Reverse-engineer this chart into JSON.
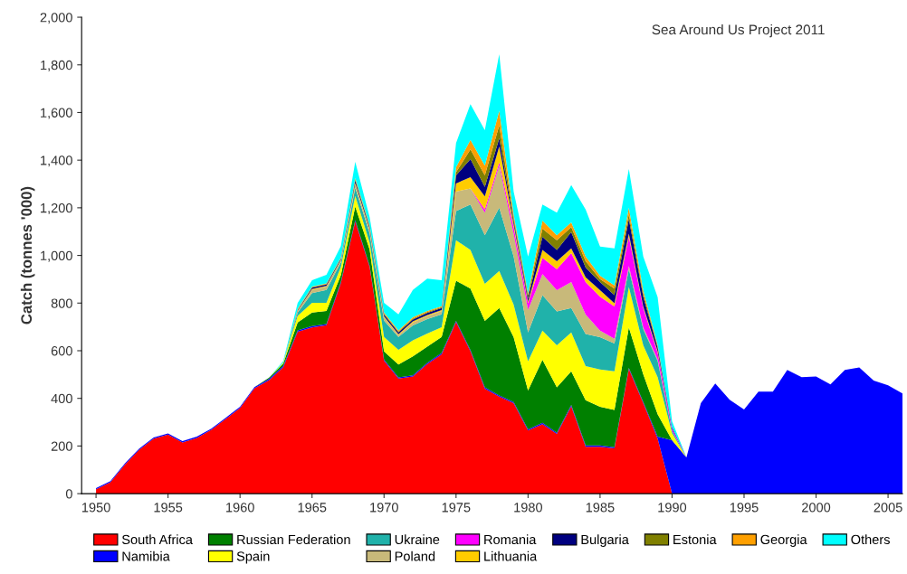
{
  "chart_data": {
    "type": "area",
    "stacked": true,
    "ylabel": "Catch (tonnes '000)",
    "annotations": [
      "Sea Around Us Project 2011"
    ],
    "x": [
      1950,
      1951,
      1952,
      1953,
      1954,
      1955,
      1956,
      1957,
      1958,
      1959,
      1960,
      1961,
      1962,
      1963,
      1964,
      1965,
      1966,
      1967,
      1968,
      1969,
      1970,
      1971,
      1972,
      1973,
      1974,
      1975,
      1976,
      1977,
      1978,
      1979,
      1980,
      1981,
      1982,
      1983,
      1984,
      1985,
      1986,
      1987,
      1988,
      1989,
      1990,
      1991,
      1992,
      1993,
      1994,
      1995,
      1996,
      1997,
      1998,
      1999,
      2000,
      2001,
      2002,
      2003,
      2004,
      2005,
      2006
    ],
    "xlim": [
      1949,
      2006
    ],
    "xticks": [
      1950,
      1955,
      1960,
      1965,
      1970,
      1975,
      1980,
      1985,
      1990,
      1995,
      2000,
      2005
    ],
    "ylim": [
      0,
      2000
    ],
    "yticks": [
      0,
      200,
      400,
      600,
      800,
      {
        "value": 1000,
        "label": "1,000"
      },
      {
        "value": 1200,
        "label": "1,200"
      },
      {
        "value": 1400,
        "label": "1,400"
      },
      {
        "value": 1600,
        "label": "1,600"
      },
      {
        "value": 1800,
        "label": "1,800"
      },
      {
        "value": 2000,
        "label": "2,000"
      }
    ],
    "grid": false,
    "legend": "bottom",
    "series": [
      {
        "name": "South Africa",
        "color": "#ff0000",
        "values": [
          18,
          48,
          122,
          184,
          231,
          248,
          215,
          234,
          268,
          313,
          360,
          442,
          476,
          531,
          680,
          698,
          707,
          884,
          1143,
          952,
          558,
          483,
          492,
          544,
          585,
          720,
          598,
          441,
          407,
          380,
          265,
          292,
          251,
          367,
          197,
          197,
          190,
          523,
          380,
          231,
          0,
          0,
          0,
          0,
          0,
          0,
          0,
          0,
          0,
          0,
          0,
          0,
          0,
          0,
          0,
          0,
          0
        ]
      },
      {
        "name": "Namibia",
        "color": "#0000ff",
        "values": [
          5,
          5,
          5,
          5,
          5,
          5,
          5,
          5,
          5,
          5,
          5,
          5,
          5,
          5,
          5,
          5,
          5,
          5,
          5,
          5,
          5,
          5,
          5,
          5,
          5,
          5,
          5,
          5,
          5,
          5,
          5,
          5,
          5,
          5,
          5,
          5,
          5,
          5,
          5,
          8,
          224,
          152,
          380,
          462,
          394,
          353,
          428,
          428,
          519,
          489,
          492,
          459,
          519,
          530,
          475,
          455,
          421
        ]
      },
      {
        "name": "Russian Federation",
        "color": "#008000",
        "values": [
          0,
          0,
          0,
          0,
          0,
          0,
          0,
          0,
          0,
          0,
          0,
          0,
          5,
          10,
          34,
          57,
          55,
          28,
          57,
          68,
          34,
          54,
          79,
          68,
          68,
          169,
          258,
          279,
          367,
          272,
          163,
          265,
          190,
          142,
          190,
          163,
          156,
          170,
          116,
          94,
          0,
          0,
          0,
          0,
          0,
          0,
          0,
          0,
          0,
          0,
          0,
          0,
          0,
          0,
          0,
          0,
          0
        ]
      },
      {
        "name": "Spain",
        "color": "#ffff00",
        "values": [
          0,
          0,
          0,
          0,
          0,
          0,
          0,
          0,
          0,
          0,
          0,
          0,
          0,
          5,
          27,
          41,
          34,
          34,
          45,
          28,
          61,
          62,
          68,
          55,
          41,
          170,
          162,
          156,
          156,
          136,
          122,
          122,
          177,
          163,
          143,
          156,
          163,
          169,
          122,
          156,
          30,
          0,
          0,
          0,
          0,
          0,
          0,
          0,
          0,
          0,
          0,
          0,
          0,
          0,
          0,
          0,
          0
        ]
      },
      {
        "name": "Ukraine",
        "color": "#20b2aa",
        "values": [
          0,
          0,
          0,
          0,
          0,
          0,
          0,
          0,
          0,
          0,
          0,
          0,
          0,
          0,
          14,
          41,
          54,
          20,
          34,
          40,
          68,
          54,
          62,
          61,
          54,
          122,
          191,
          204,
          265,
          203,
          122,
          149,
          142,
          102,
          135,
          136,
          116,
          75,
          68,
          68,
          10,
          0,
          0,
          0,
          0,
          0,
          0,
          0,
          0,
          0,
          0,
          0,
          0,
          0,
          0,
          0,
          0
        ]
      },
      {
        "name": "Poland",
        "color": "#c8b97a",
        "values": [
          0,
          0,
          0,
          0,
          0,
          0,
          0,
          0,
          0,
          0,
          0,
          0,
          0,
          0,
          5,
          13,
          14,
          7,
          14,
          14,
          14,
          7,
          13,
          13,
          14,
          82,
          67,
          95,
          177,
          95,
          95,
          89,
          89,
          109,
          82,
          27,
          20,
          14,
          7,
          7,
          0,
          0,
          0,
          0,
          0,
          0,
          0,
          0,
          0,
          0,
          0,
          0,
          0,
          0,
          0,
          0,
          0
        ]
      },
      {
        "name": "Romania",
        "color": "#ff00ff",
        "values": [
          0,
          0,
          0,
          0,
          0,
          0,
          0,
          0,
          0,
          0,
          0,
          0,
          0,
          0,
          0,
          0,
          0,
          0,
          0,
          0,
          0,
          0,
          0,
          0,
          0,
          0,
          0,
          13,
          13,
          28,
          27,
          68,
          88,
          122,
          136,
          143,
          136,
          122,
          81,
          27,
          10,
          0,
          0,
          0,
          0,
          0,
          0,
          0,
          0,
          0,
          0,
          0,
          0,
          0,
          0,
          0,
          0
        ]
      },
      {
        "name": "Lithuania",
        "color": "#ffcc00",
        "values": [
          0,
          0,
          0,
          0,
          0,
          0,
          0,
          0,
          0,
          0,
          0,
          0,
          0,
          0,
          2,
          4,
          3,
          3,
          6,
          4,
          4,
          4,
          4,
          4,
          4,
          34,
          48,
          55,
          68,
          13,
          7,
          33,
          34,
          20,
          20,
          27,
          13,
          13,
          7,
          7,
          0,
          0,
          0,
          0,
          0,
          0,
          0,
          0,
          0,
          0,
          0,
          0,
          0,
          0,
          0,
          0,
          0
        ]
      },
      {
        "name": "Bulgaria",
        "color": "#000080",
        "values": [
          0,
          0,
          0,
          0,
          0,
          0,
          0,
          0,
          0,
          0,
          0,
          0,
          0,
          0,
          3,
          6,
          6,
          5,
          10,
          8,
          8,
          8,
          8,
          8,
          8,
          34,
          75,
          40,
          34,
          14,
          14,
          55,
          47,
          68,
          41,
          34,
          34,
          62,
          41,
          14,
          5,
          0,
          0,
          0,
          0,
          0,
          0,
          0,
          0,
          0,
          0,
          0,
          0,
          0,
          0,
          0,
          0
        ]
      },
      {
        "name": "Estonia",
        "color": "#808000",
        "values": [
          0,
          0,
          0,
          0,
          0,
          0,
          0,
          0,
          0,
          0,
          0,
          0,
          0,
          0,
          2,
          2,
          2,
          2,
          5,
          4,
          4,
          4,
          4,
          4,
          4,
          13,
          41,
          48,
          54,
          13,
          13,
          34,
          41,
          21,
          27,
          13,
          28,
          20,
          13,
          7,
          0,
          0,
          0,
          0,
          0,
          0,
          0,
          0,
          0,
          0,
          0,
          0,
          0,
          0,
          0,
          0,
          0
        ]
      },
      {
        "name": "Georgia",
        "color": "#ffa000",
        "values": [
          0,
          0,
          0,
          0,
          0,
          0,
          0,
          0,
          0,
          0,
          0,
          0,
          0,
          0,
          3,
          2,
          3,
          3,
          6,
          4,
          4,
          4,
          5,
          5,
          4,
          21,
          40,
          41,
          61,
          14,
          7,
          34,
          21,
          20,
          20,
          14,
          13,
          27,
          14,
          6,
          0,
          0,
          0,
          0,
          0,
          0,
          0,
          0,
          0,
          0,
          0,
          0,
          0,
          0,
          0,
          0,
          0
        ]
      },
      {
        "name": "Others",
        "color": "#00ffff",
        "values": [
          0,
          0,
          0,
          0,
          0,
          0,
          0,
          0,
          0,
          0,
          0,
          0,
          0,
          5,
          25,
          27,
          36,
          48,
          68,
          34,
          41,
          68,
          115,
          136,
          109,
          102,
          150,
          149,
          238,
          95,
          156,
          68,
          95,
          156,
          197,
          122,
          156,
          163,
          142,
          200,
          25,
          0,
          0,
          0,
          0,
          0,
          0,
          0,
          0,
          0,
          0,
          0,
          0,
          0,
          0,
          0,
          0
        ]
      }
    ]
  }
}
